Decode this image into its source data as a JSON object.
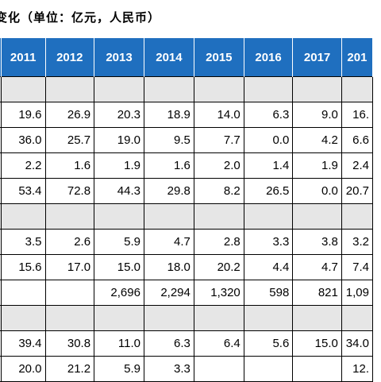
{
  "title": "变化（单位：亿元，人民币）",
  "years": [
    "2011",
    "2012",
    "2013",
    "2014",
    "2015",
    "2016",
    "2017",
    "201"
  ],
  "rows": [
    {
      "type": "section",
      "cells": [
        "",
        "",
        "",
        "",
        "",
        "",
        "",
        ""
      ]
    },
    {
      "type": "data",
      "cells": [
        "19.6",
        "26.9",
        "20.3",
        "18.9",
        "14.0",
        "6.3",
        "9.0",
        "16."
      ]
    },
    {
      "type": "data",
      "cells": [
        "36.0",
        "25.7",
        "19.0",
        "9.5",
        "7.7",
        "0.0",
        "4.2",
        "6.6"
      ]
    },
    {
      "type": "data",
      "cells": [
        "2.2",
        "1.6",
        "1.9",
        "1.6",
        "2.0",
        "1.4",
        "1.9",
        "2.4"
      ]
    },
    {
      "type": "data",
      "cells": [
        "53.4",
        "72.8",
        "44.3",
        "29.8",
        "8.2",
        "26.5",
        "0.0",
        "20.7"
      ]
    },
    {
      "type": "section",
      "cells": [
        "",
        "",
        "",
        "",
        "",
        "",
        "",
        ""
      ]
    },
    {
      "type": "data",
      "cells": [
        "3.5",
        "2.6",
        "5.9",
        "4.7",
        "2.8",
        "3.3",
        "3.8",
        "3.2"
      ]
    },
    {
      "type": "data",
      "cells": [
        "15.6",
        "17.0",
        "15.0",
        "18.0",
        "20.2",
        "4.4",
        "4.7",
        "7.4"
      ]
    },
    {
      "type": "data",
      "cells": [
        "",
        "",
        "2,696",
        "2,294",
        "1,320",
        "598",
        "821",
        "1,09"
      ]
    },
    {
      "type": "section",
      "cells": [
        "",
        "",
        "",
        "",
        "",
        "",
        "",
        ""
      ]
    },
    {
      "type": "data",
      "cells": [
        "39.4",
        "30.8",
        "11.0",
        "6.3",
        "6.4",
        "5.6",
        "15.0",
        "34.0"
      ]
    },
    {
      "type": "data",
      "cells": [
        "20.0",
        "21.2",
        "5.9",
        "3.3",
        "",
        "",
        "",
        "12."
      ]
    }
  ]
}
